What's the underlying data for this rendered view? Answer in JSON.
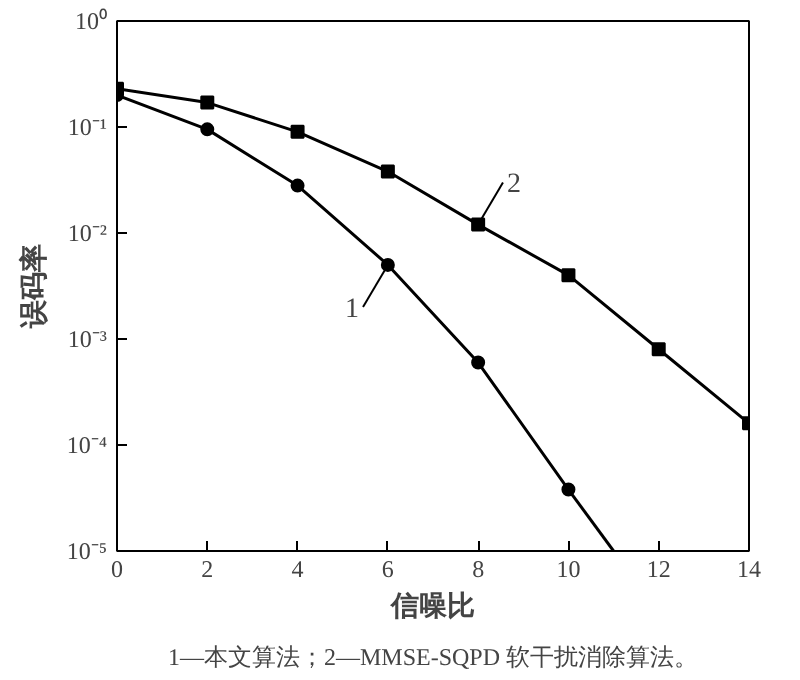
{
  "chart_data": {
    "type": "line",
    "xlabel": "信噪比",
    "ylabel": "误码率",
    "log": "y",
    "xlim": [
      0,
      14
    ],
    "xticks": [
      0,
      2,
      4,
      6,
      8,
      10,
      12,
      14
    ],
    "ylim": [
      1e-05,
      1
    ],
    "yticks": [
      {
        "value": 1e-05,
        "label": "10⁻⁵"
      },
      {
        "value": 0.0001,
        "label": "10⁻⁴"
      },
      {
        "value": 0.001,
        "label": "10⁻³"
      },
      {
        "value": 0.01,
        "label": "10⁻²"
      },
      {
        "value": 0.1,
        "label": "10⁻¹"
      },
      {
        "value": 1,
        "label": "10⁰"
      }
    ],
    "grid": false,
    "marker": "circle",
    "line_style": "solid",
    "series": [
      {
        "color": "#000000",
        "x": [
          0,
          2,
          4,
          6,
          8,
          10
        ],
        "values": [
          0.2,
          0.095,
          0.028,
          0.005,
          0.0006,
          3.8e-05
        ]
      },
      {
        "color": "#000000",
        "x": [
          10,
          11
        ],
        "values": [
          3.8e-05,
          1e-05
        ],
        "marker": "none"
      },
      {
        "color": "#000000",
        "marker": "square",
        "x": [
          0,
          2,
          4,
          6,
          8,
          10,
          12,
          14
        ],
        "values": [
          0.23,
          0.17,
          0.09,
          0.038,
          0.012,
          0.004,
          0.0008,
          0.00016
        ]
      }
    ],
    "annotations": [
      {
        "text": "1",
        "x": 6,
        "y": 0.005
      },
      {
        "text": "2",
        "x": 8,
        "y": 0.012
      },
      "1—本文算法；2—MMSE-SQPD 软干扰消除算法。"
    ]
  }
}
